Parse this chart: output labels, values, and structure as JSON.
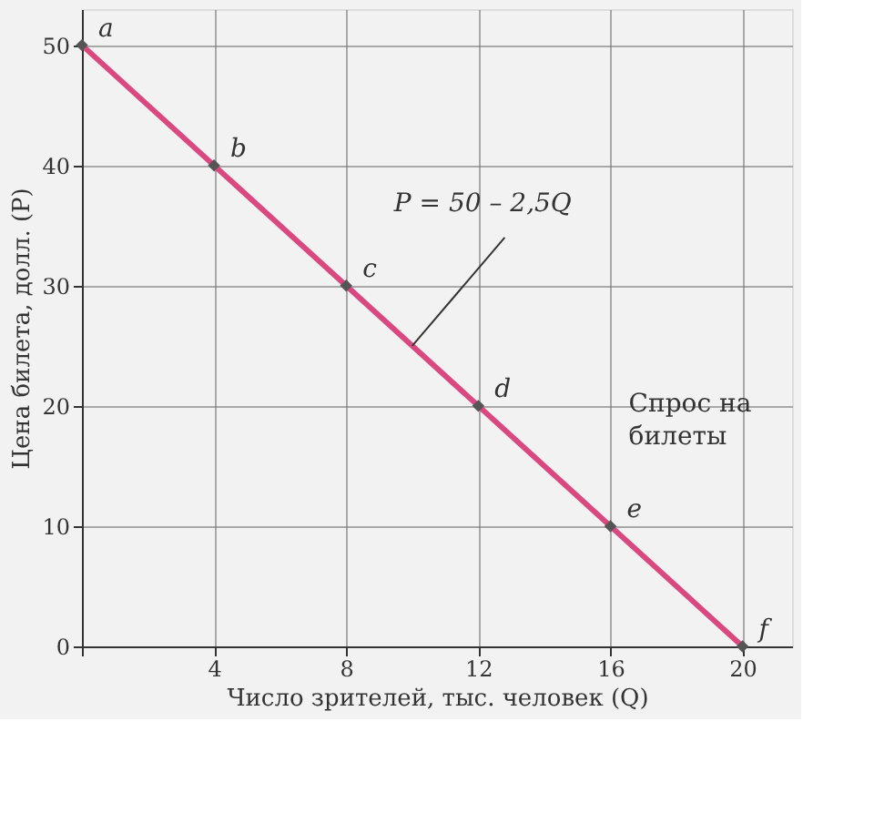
{
  "chart_data": {
    "type": "line",
    "xlabel": "Число зрителей, тыс. человек (Q)",
    "ylabel": "Цена билета, долл. (P)",
    "xlim": [
      0,
      21.5
    ],
    "ylim": [
      0,
      53
    ],
    "xticks": [
      {
        "value": 0,
        "label": null
      },
      4,
      8,
      12,
      16,
      20
    ],
    "yticks": [
      0,
      10,
      20,
      30,
      40,
      50
    ],
    "grid": true,
    "series": [
      {
        "color": "#d9487f",
        "x": [
          0,
          20
        ],
        "values": [
          50,
          0
        ],
        "marker": "none",
        "line_style": "solid"
      },
      {
        "type": "scatter",
        "color": "#555555",
        "x": [
          0,
          4,
          8,
          12,
          16,
          20
        ],
        "values": [
          50,
          40,
          30,
          20,
          10,
          0
        ],
        "marker": "diamond"
      }
    ],
    "annotations": [
      {
        "text": "a",
        "x": 0,
        "y": 50
      },
      {
        "text": "b",
        "x": 4,
        "y": 40
      },
      {
        "text": "c",
        "x": 8,
        "y": 30
      },
      {
        "text": "d",
        "x": 12,
        "y": 20
      },
      {
        "text": "e",
        "x": 16,
        "y": 10
      },
      {
        "text": "f",
        "x": 20,
        "y": 0
      },
      {
        "text": "P = 50 – 2,5Q",
        "x": 10,
        "y": 25
      },
      "Спрос на билеты"
    ]
  }
}
